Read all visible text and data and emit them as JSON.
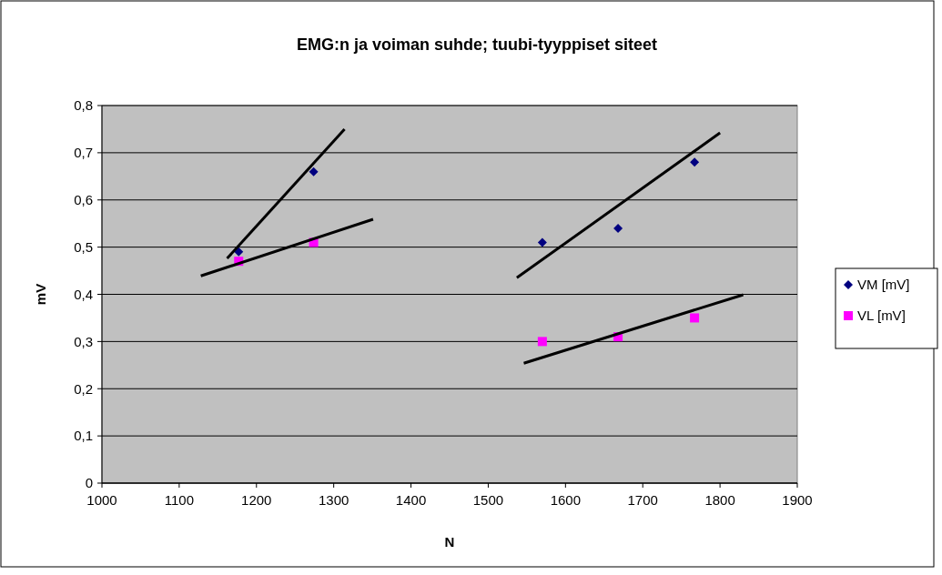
{
  "chart_data": {
    "type": "scatter",
    "title": "EMG:n ja voiman suhde; tuubi-tyyppiset siteet",
    "xlabel": "N",
    "ylabel": "mV",
    "xlim": [
      1000,
      1900
    ],
    "xticks": [
      1000,
      1100,
      1200,
      1300,
      1400,
      1500,
      1600,
      1700,
      1800,
      1900
    ],
    "ylim": [
      0,
      0.8
    ],
    "yticks": [
      {
        "value": 0,
        "label": "0"
      },
      {
        "value": 0.1,
        "label": "0,1"
      },
      {
        "value": 0.2,
        "label": "0,2"
      },
      {
        "value": 0.3,
        "label": "0,3"
      },
      {
        "value": 0.4,
        "label": "0,4"
      },
      {
        "value": 0.5,
        "label": "0,5"
      },
      {
        "value": 0.6,
        "label": "0,6"
      },
      {
        "value": 0.7,
        "label": "0,7"
      },
      {
        "value": 0.8,
        "label": "0,8"
      }
    ],
    "grid": "y",
    "legend": "right",
    "series": [
      {
        "name": "VM [mV]",
        "color": "#000080",
        "marker": "diamond",
        "x": [
          1177,
          1274,
          1570,
          1668,
          1767
        ],
        "values": [
          0.49,
          0.66,
          0.51,
          0.54,
          0.68
        ]
      },
      {
        "name": "VL [mV]",
        "color": "#ff00ff",
        "marker": "square",
        "x": [
          1177,
          1274,
          1570,
          1668,
          1767
        ],
        "values": [
          0.47,
          0.51,
          0.3,
          0.31,
          0.35
        ]
      },
      {
        "type": "line",
        "color": "#000000",
        "marker": "none",
        "x": [
          1162,
          1314
        ],
        "values": [
          0.476,
          0.75
        ]
      },
      {
        "type": "line",
        "color": "#000000",
        "marker": "none",
        "x": [
          1128,
          1351
        ],
        "values": [
          0.439,
          0.559
        ]
      },
      {
        "type": "line",
        "color": "#000000",
        "marker": "none",
        "x": [
          1537,
          1800
        ],
        "values": [
          0.435,
          0.742
        ]
      },
      {
        "type": "line",
        "color": "#000000",
        "marker": "none",
        "x": [
          1546,
          1830
        ],
        "values": [
          0.254,
          0.399
        ]
      }
    ]
  }
}
